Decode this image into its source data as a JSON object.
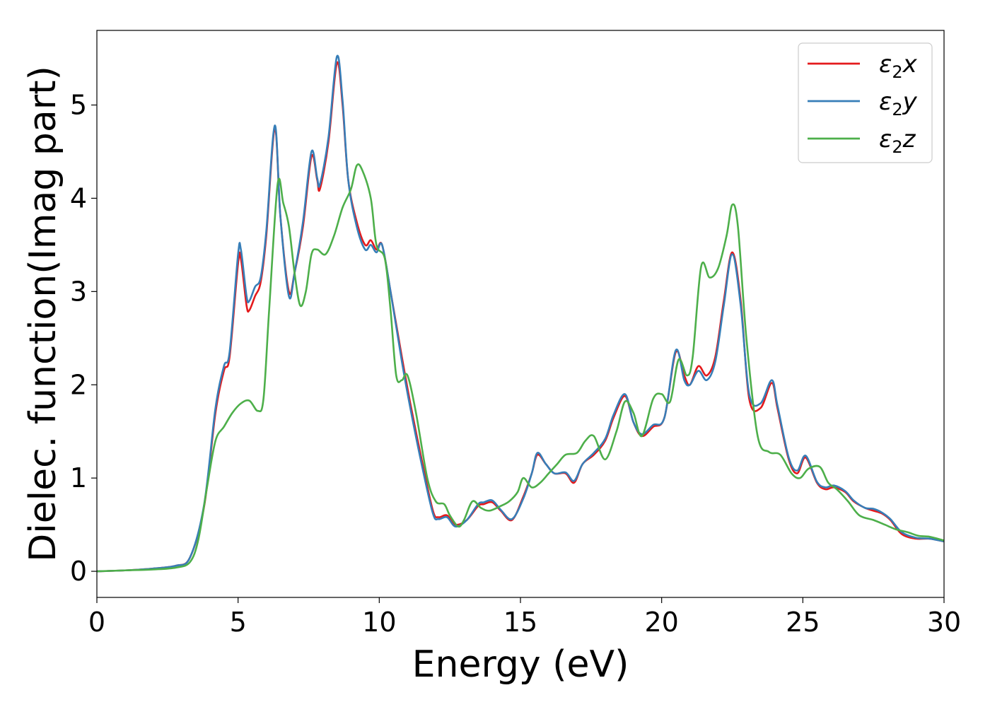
{
  "chart_data": {
    "type": "line",
    "title": "",
    "xlabel": "Energy (eV)",
    "ylabel": "Dielec. function(Imag part)",
    "xlim": [
      0,
      30
    ],
    "ylim": [
      -0.28,
      5.8
    ],
    "xticks": [
      0,
      5,
      10,
      15,
      20,
      25,
      30
    ],
    "yticks": [
      0,
      1,
      2,
      3,
      4,
      5
    ],
    "grid": false,
    "legend_position": "top-right",
    "series": [
      {
        "name": "ε2x",
        "legend_main": "ε",
        "legend_sub": "2",
        "legend_suffix": "x",
        "color": "#e41a1c",
        "points": [
          [
            0,
            0
          ],
          [
            1,
            0.01
          ],
          [
            2,
            0.03
          ],
          [
            2.8,
            0.06
          ],
          [
            3.3,
            0.15
          ],
          [
            3.8,
            0.7
          ],
          [
            4.2,
            1.7
          ],
          [
            4.5,
            2.15
          ],
          [
            4.7,
            2.3
          ],
          [
            5.0,
            3.3
          ],
          [
            5.1,
            3.35
          ],
          [
            5.3,
            2.85
          ],
          [
            5.4,
            2.8
          ],
          [
            5.6,
            2.95
          ],
          [
            5.8,
            3.1
          ],
          [
            6.0,
            3.6
          ],
          [
            6.3,
            4.75
          ],
          [
            6.5,
            3.8
          ],
          [
            6.8,
            3.0
          ],
          [
            7.0,
            3.2
          ],
          [
            7.3,
            3.7
          ],
          [
            7.6,
            4.45
          ],
          [
            7.8,
            4.2
          ],
          [
            7.9,
            4.1
          ],
          [
            8.2,
            4.6
          ],
          [
            8.5,
            5.45
          ],
          [
            8.7,
            5.0
          ],
          [
            8.9,
            4.2
          ],
          [
            9.2,
            3.75
          ],
          [
            9.5,
            3.5
          ],
          [
            9.7,
            3.55
          ],
          [
            9.9,
            3.45
          ],
          [
            10.1,
            3.5
          ],
          [
            10.4,
            3.0
          ],
          [
            10.8,
            2.3
          ],
          [
            11.1,
            1.8
          ],
          [
            11.5,
            1.2
          ],
          [
            11.9,
            0.65
          ],
          [
            12.1,
            0.58
          ],
          [
            12.4,
            0.6
          ],
          [
            12.7,
            0.5
          ],
          [
            13.1,
            0.55
          ],
          [
            13.5,
            0.7
          ],
          [
            13.7,
            0.72
          ],
          [
            14.0,
            0.74
          ],
          [
            14.3,
            0.65
          ],
          [
            14.7,
            0.55
          ],
          [
            15.1,
            0.8
          ],
          [
            15.4,
            1.05
          ],
          [
            15.6,
            1.25
          ],
          [
            15.9,
            1.15
          ],
          [
            16.2,
            1.05
          ],
          [
            16.6,
            1.05
          ],
          [
            16.9,
            0.95
          ],
          [
            17.2,
            1.15
          ],
          [
            17.6,
            1.25
          ],
          [
            18.0,
            1.4
          ],
          [
            18.3,
            1.65
          ],
          [
            18.7,
            1.88
          ],
          [
            19.0,
            1.6
          ],
          [
            19.3,
            1.45
          ],
          [
            19.7,
            1.55
          ],
          [
            20.1,
            1.65
          ],
          [
            20.5,
            2.35
          ],
          [
            20.8,
            2.1
          ],
          [
            21.0,
            2.0
          ],
          [
            21.3,
            2.2
          ],
          [
            21.6,
            2.1
          ],
          [
            21.9,
            2.3
          ],
          [
            22.2,
            2.9
          ],
          [
            22.5,
            3.42
          ],
          [
            22.8,
            2.9
          ],
          [
            23.1,
            1.85
          ],
          [
            23.5,
            1.75
          ],
          [
            23.9,
            2.02
          ],
          [
            24.1,
            1.75
          ],
          [
            24.5,
            1.2
          ],
          [
            24.8,
            1.05
          ],
          [
            25.1,
            1.22
          ],
          [
            25.5,
            0.95
          ],
          [
            25.8,
            0.88
          ],
          [
            26.1,
            0.9
          ],
          [
            26.5,
            0.85
          ],
          [
            26.8,
            0.75
          ],
          [
            27.2,
            0.68
          ],
          [
            27.5,
            0.65
          ],
          [
            27.8,
            0.62
          ],
          [
            28.1,
            0.55
          ],
          [
            28.5,
            0.4
          ],
          [
            29.0,
            0.35
          ],
          [
            29.5,
            0.35
          ],
          [
            30.0,
            0.32
          ]
        ]
      },
      {
        "name": "ε2y",
        "legend_main": "ε",
        "legend_sub": "2",
        "legend_suffix": "y",
        "color": "#377eb8",
        "points": [
          [
            0,
            0
          ],
          [
            1,
            0.01
          ],
          [
            2,
            0.03
          ],
          [
            2.8,
            0.06
          ],
          [
            3.3,
            0.15
          ],
          [
            3.8,
            0.72
          ],
          [
            4.2,
            1.75
          ],
          [
            4.5,
            2.2
          ],
          [
            4.7,
            2.35
          ],
          [
            5.0,
            3.4
          ],
          [
            5.1,
            3.45
          ],
          [
            5.3,
            2.95
          ],
          [
            5.4,
            2.9
          ],
          [
            5.6,
            3.05
          ],
          [
            5.8,
            3.15
          ],
          [
            6.0,
            3.65
          ],
          [
            6.3,
            4.78
          ],
          [
            6.5,
            3.8
          ],
          [
            6.8,
            2.95
          ],
          [
            7.0,
            3.2
          ],
          [
            7.3,
            3.75
          ],
          [
            7.6,
            4.5
          ],
          [
            7.8,
            4.22
          ],
          [
            7.9,
            4.15
          ],
          [
            8.2,
            4.65
          ],
          [
            8.5,
            5.52
          ],
          [
            8.7,
            5.05
          ],
          [
            8.9,
            4.2
          ],
          [
            9.2,
            3.7
          ],
          [
            9.5,
            3.45
          ],
          [
            9.7,
            3.5
          ],
          [
            9.9,
            3.42
          ],
          [
            10.1,
            3.5
          ],
          [
            10.4,
            3.0
          ],
          [
            10.8,
            2.25
          ],
          [
            11.1,
            1.75
          ],
          [
            11.5,
            1.15
          ],
          [
            11.9,
            0.62
          ],
          [
            12.1,
            0.56
          ],
          [
            12.4,
            0.58
          ],
          [
            12.7,
            0.48
          ],
          [
            13.1,
            0.55
          ],
          [
            13.5,
            0.72
          ],
          [
            13.7,
            0.74
          ],
          [
            14.0,
            0.76
          ],
          [
            14.3,
            0.66
          ],
          [
            14.7,
            0.56
          ],
          [
            15.1,
            0.78
          ],
          [
            15.4,
            1.05
          ],
          [
            15.6,
            1.27
          ],
          [
            15.9,
            1.15
          ],
          [
            16.2,
            1.05
          ],
          [
            16.6,
            1.06
          ],
          [
            16.9,
            0.97
          ],
          [
            17.2,
            1.15
          ],
          [
            17.6,
            1.27
          ],
          [
            18.0,
            1.42
          ],
          [
            18.3,
            1.68
          ],
          [
            18.7,
            1.9
          ],
          [
            19.0,
            1.6
          ],
          [
            19.3,
            1.47
          ],
          [
            19.7,
            1.57
          ],
          [
            20.1,
            1.65
          ],
          [
            20.5,
            2.37
          ],
          [
            20.8,
            2.05
          ],
          [
            21.0,
            2.0
          ],
          [
            21.3,
            2.15
          ],
          [
            21.6,
            2.05
          ],
          [
            21.9,
            2.25
          ],
          [
            22.2,
            2.85
          ],
          [
            22.5,
            3.4
          ],
          [
            22.8,
            2.85
          ],
          [
            23.1,
            1.9
          ],
          [
            23.5,
            1.8
          ],
          [
            23.9,
            2.05
          ],
          [
            24.1,
            1.78
          ],
          [
            24.5,
            1.22
          ],
          [
            24.8,
            1.08
          ],
          [
            25.1,
            1.24
          ],
          [
            25.5,
            0.96
          ],
          [
            25.8,
            0.9
          ],
          [
            26.1,
            0.92
          ],
          [
            26.5,
            0.86
          ],
          [
            26.8,
            0.76
          ],
          [
            27.2,
            0.68
          ],
          [
            27.5,
            0.67
          ],
          [
            27.8,
            0.63
          ],
          [
            28.1,
            0.56
          ],
          [
            28.5,
            0.42
          ],
          [
            29.0,
            0.36
          ],
          [
            29.5,
            0.35
          ],
          [
            30.0,
            0.32
          ]
        ]
      },
      {
        "name": "ε2z",
        "legend_main": "ε",
        "legend_sub": "2",
        "legend_suffix": "z",
        "color": "#4daf4a",
        "points": [
          [
            0,
            0
          ],
          [
            1,
            0.01
          ],
          [
            2,
            0.02
          ],
          [
            2.8,
            0.04
          ],
          [
            3.3,
            0.1
          ],
          [
            3.6,
            0.35
          ],
          [
            3.9,
            0.9
          ],
          [
            4.2,
            1.4
          ],
          [
            4.5,
            1.55
          ],
          [
            4.8,
            1.7
          ],
          [
            5.1,
            1.8
          ],
          [
            5.4,
            1.83
          ],
          [
            5.7,
            1.72
          ],
          [
            5.9,
            1.85
          ],
          [
            6.1,
            2.8
          ],
          [
            6.4,
            4.15
          ],
          [
            6.6,
            3.95
          ],
          [
            6.8,
            3.7
          ],
          [
            7.0,
            3.2
          ],
          [
            7.2,
            2.85
          ],
          [
            7.4,
            3.0
          ],
          [
            7.6,
            3.4
          ],
          [
            7.8,
            3.45
          ],
          [
            8.1,
            3.4
          ],
          [
            8.4,
            3.6
          ],
          [
            8.7,
            3.9
          ],
          [
            9.0,
            4.1
          ],
          [
            9.2,
            4.35
          ],
          [
            9.4,
            4.3
          ],
          [
            9.7,
            4.0
          ],
          [
            9.9,
            3.5
          ],
          [
            10.2,
            3.35
          ],
          [
            10.4,
            2.8
          ],
          [
            10.6,
            2.1
          ],
          [
            10.8,
            2.05
          ],
          [
            11.0,
            2.1
          ],
          [
            11.3,
            1.7
          ],
          [
            11.7,
            1.0
          ],
          [
            12.0,
            0.75
          ],
          [
            12.3,
            0.72
          ],
          [
            12.5,
            0.6
          ],
          [
            12.8,
            0.48
          ],
          [
            13.0,
            0.55
          ],
          [
            13.3,
            0.75
          ],
          [
            13.6,
            0.68
          ],
          [
            13.9,
            0.65
          ],
          [
            14.3,
            0.7
          ],
          [
            14.6,
            0.75
          ],
          [
            14.9,
            0.85
          ],
          [
            15.1,
            1.0
          ],
          [
            15.4,
            0.9
          ],
          [
            15.7,
            0.95
          ],
          [
            16.0,
            1.05
          ],
          [
            16.3,
            1.15
          ],
          [
            16.6,
            1.25
          ],
          [
            17.0,
            1.27
          ],
          [
            17.3,
            1.4
          ],
          [
            17.6,
            1.45
          ],
          [
            18.0,
            1.2
          ],
          [
            18.4,
            1.5
          ],
          [
            18.7,
            1.82
          ],
          [
            19.0,
            1.7
          ],
          [
            19.3,
            1.45
          ],
          [
            19.7,
            1.85
          ],
          [
            20.0,
            1.9
          ],
          [
            20.3,
            1.82
          ],
          [
            20.6,
            2.27
          ],
          [
            20.9,
            2.1
          ],
          [
            21.1,
            2.3
          ],
          [
            21.4,
            3.27
          ],
          [
            21.7,
            3.15
          ],
          [
            22.0,
            3.25
          ],
          [
            22.3,
            3.6
          ],
          [
            22.5,
            3.93
          ],
          [
            22.7,
            3.7
          ],
          [
            23.0,
            2.5
          ],
          [
            23.4,
            1.45
          ],
          [
            23.8,
            1.28
          ],
          [
            24.2,
            1.25
          ],
          [
            24.6,
            1.05
          ],
          [
            24.9,
            1.0
          ],
          [
            25.2,
            1.1
          ],
          [
            25.6,
            1.12
          ],
          [
            25.9,
            0.95
          ],
          [
            26.2,
            0.88
          ],
          [
            26.6,
            0.75
          ],
          [
            27.0,
            0.6
          ],
          [
            27.5,
            0.55
          ],
          [
            27.9,
            0.5
          ],
          [
            28.3,
            0.45
          ],
          [
            28.7,
            0.42
          ],
          [
            29.1,
            0.38
          ],
          [
            29.5,
            0.37
          ],
          [
            30.0,
            0.33
          ]
        ]
      }
    ]
  }
}
